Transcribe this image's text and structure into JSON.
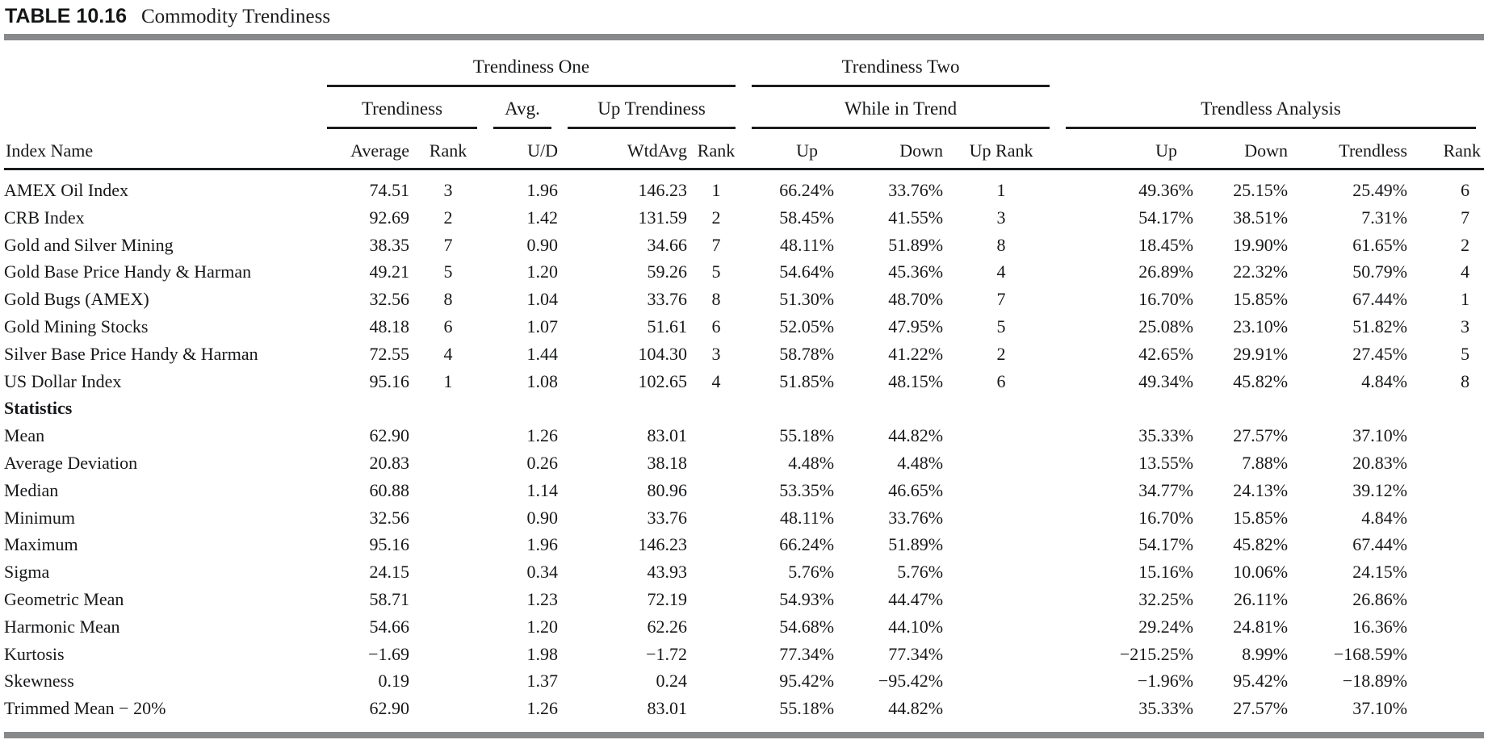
{
  "title": {
    "tag": "TABLE 10.16",
    "caption": "Commodity Trendiness"
  },
  "header": {
    "groups": [
      {
        "label": "Trendiness One"
      },
      {
        "label": "Trendiness Two"
      }
    ],
    "subgroups": [
      {
        "label": "Trendiness"
      },
      {
        "label": "Avg."
      },
      {
        "label": "Up Trendiness"
      },
      {
        "label": "While in Trend"
      },
      {
        "label": "Trendless Analysis"
      }
    ],
    "columns": [
      "Index Name",
      "Average",
      "Rank",
      "U/D",
      "WtdAvg",
      "Rank",
      "Up",
      "Down",
      "Up Rank",
      "Up",
      "Down",
      "Trendless",
      "Rank"
    ]
  },
  "rows": [
    [
      "AMEX Oil Index",
      "74.51",
      "3",
      "1.96",
      "146.23",
      "1",
      "66.24%",
      "33.76%",
      "1",
      "49.36%",
      "25.15%",
      "25.49%",
      "6"
    ],
    [
      "CRB Index",
      "92.69",
      "2",
      "1.42",
      "131.59",
      "2",
      "58.45%",
      "41.55%",
      "3",
      "54.17%",
      "38.51%",
      "7.31%",
      "7"
    ],
    [
      "Gold and Silver Mining",
      "38.35",
      "7",
      "0.90",
      "34.66",
      "7",
      "48.11%",
      "51.89%",
      "8",
      "18.45%",
      "19.90%",
      "61.65%",
      "2"
    ],
    [
      "Gold Base Price Handy & Harman",
      "49.21",
      "5",
      "1.20",
      "59.26",
      "5",
      "54.64%",
      "45.36%",
      "4",
      "26.89%",
      "22.32%",
      "50.79%",
      "4"
    ],
    [
      "Gold Bugs (AMEX)",
      "32.56",
      "8",
      "1.04",
      "33.76",
      "8",
      "51.30%",
      "48.70%",
      "7",
      "16.70%",
      "15.85%",
      "67.44%",
      "1"
    ],
    [
      "Gold Mining Stocks",
      "48.18",
      "6",
      "1.07",
      "51.61",
      "6",
      "52.05%",
      "47.95%",
      "5",
      "25.08%",
      "23.10%",
      "51.82%",
      "3"
    ],
    [
      "Silver Base Price Handy & Harman",
      "72.55",
      "4",
      "1.44",
      "104.30",
      "3",
      "58.78%",
      "41.22%",
      "2",
      "42.65%",
      "29.91%",
      "27.45%",
      "5"
    ],
    [
      "US Dollar Index",
      "95.16",
      "1",
      "1.08",
      "102.65",
      "4",
      "51.85%",
      "48.15%",
      "6",
      "49.34%",
      "45.82%",
      "4.84%",
      "8"
    ]
  ],
  "section_label": "Statistics",
  "statistics_rows": [
    [
      "Mean",
      "62.90",
      "",
      "1.26",
      "83.01",
      "",
      "55.18%",
      "44.82%",
      "",
      "35.33%",
      "27.57%",
      "37.10%",
      ""
    ],
    [
      "Average Deviation",
      "20.83",
      "",
      "0.26",
      "38.18",
      "",
      "4.48%",
      "4.48%",
      "",
      "13.55%",
      "7.88%",
      "20.83%",
      ""
    ],
    [
      "Median",
      "60.88",
      "",
      "1.14",
      "80.96",
      "",
      "53.35%",
      "46.65%",
      "",
      "34.77%",
      "24.13%",
      "39.12%",
      ""
    ],
    [
      "Minimum",
      "32.56",
      "",
      "0.90",
      "33.76",
      "",
      "48.11%",
      "33.76%",
      "",
      "16.70%",
      "15.85%",
      "4.84%",
      ""
    ],
    [
      "Maximum",
      "95.16",
      "",
      "1.96",
      "146.23",
      "",
      "66.24%",
      "51.89%",
      "",
      "54.17%",
      "45.82%",
      "67.44%",
      ""
    ],
    [
      "Sigma",
      "24.15",
      "",
      "0.34",
      "43.93",
      "",
      "5.76%",
      "5.76%",
      "",
      "15.16%",
      "10.06%",
      "24.15%",
      ""
    ],
    [
      "Geometric Mean",
      "58.71",
      "",
      "1.23",
      "72.19",
      "",
      "54.93%",
      "44.47%",
      "",
      "32.25%",
      "26.11%",
      "26.86%",
      ""
    ],
    [
      "Harmonic Mean",
      "54.66",
      "",
      "1.20",
      "62.26",
      "",
      "54.68%",
      "44.10%",
      "",
      "29.24%",
      "24.81%",
      "16.36%",
      ""
    ],
    [
      "Kurtosis",
      "−1.69",
      "",
      "1.98",
      "−1.72",
      "",
      "77.34%",
      "77.34%",
      "",
      "−215.25%",
      "8.99%",
      "−168.59%",
      ""
    ],
    [
      "Skewness",
      "0.19",
      "",
      "1.37",
      "0.24",
      "",
      "95.42%",
      "−95.42%",
      "",
      "−1.96%",
      "95.42%",
      "−18.89%",
      ""
    ],
    [
      "Trimmed Mean − 20%",
      "62.90",
      "",
      "1.26",
      "83.01",
      "",
      "55.18%",
      "44.82%",
      "",
      "35.33%",
      "27.57%",
      "37.10%",
      ""
    ]
  ],
  "colors": {
    "rule_gray": "#88898b",
    "rule_black": "#1b1c1e",
    "text": "#17181a",
    "background": "#ffffff"
  }
}
